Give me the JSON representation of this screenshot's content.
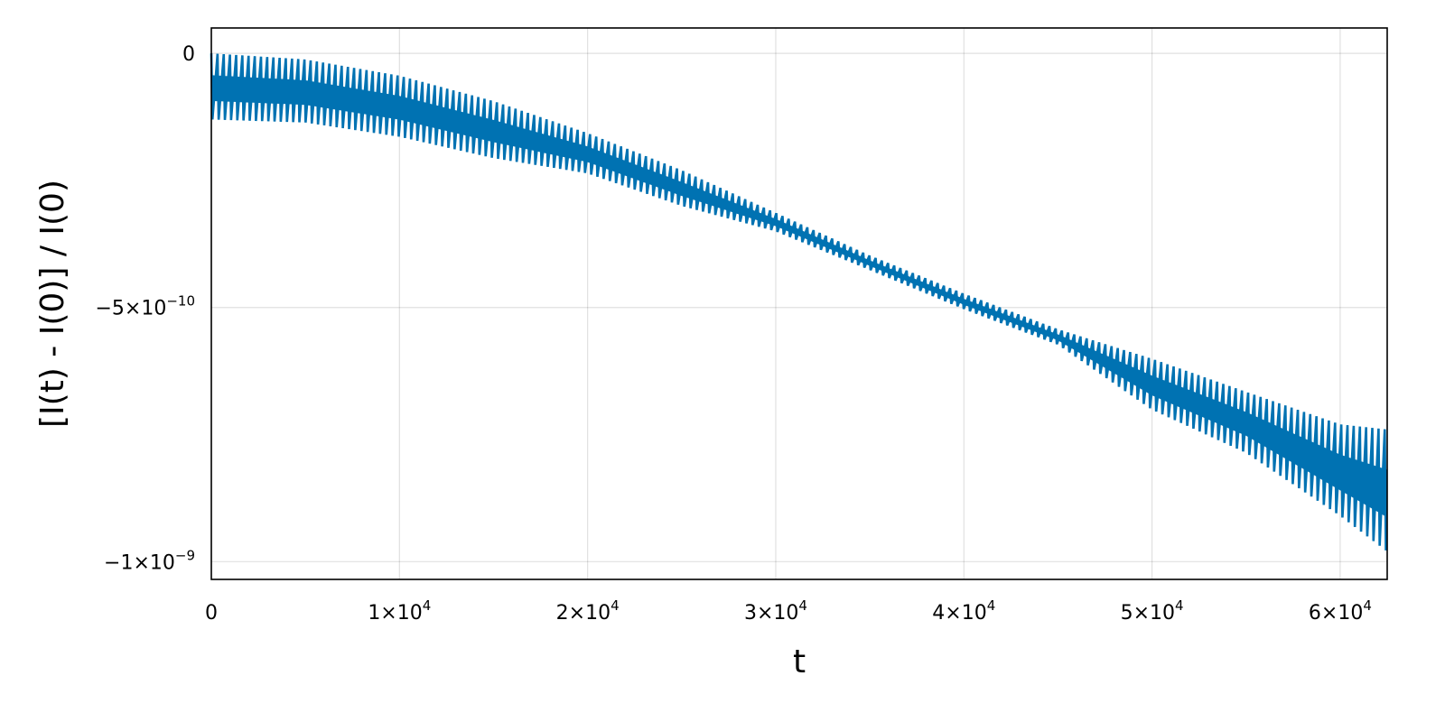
{
  "chart_data": {
    "type": "line",
    "title": "",
    "xlabel": "t",
    "ylabel": "[I(t) - I(0)] / I(0)",
    "xlim": [
      0,
      62500
    ],
    "ylim": [
      -1.035e-09,
      5e-11
    ],
    "grid": true,
    "legend": "none",
    "x_ticks": [
      {
        "value": 0,
        "mantissa": "0",
        "exponent": ""
      },
      {
        "value": 10000,
        "mantissa": "1×10",
        "exponent": "4"
      },
      {
        "value": 20000,
        "mantissa": "2×10",
        "exponent": "4"
      },
      {
        "value": 30000,
        "mantissa": "3×10",
        "exponent": "4"
      },
      {
        "value": 40000,
        "mantissa": "4×10",
        "exponent": "4"
      },
      {
        "value": 50000,
        "mantissa": "5×10",
        "exponent": "4"
      },
      {
        "value": 60000,
        "mantissa": "6×10",
        "exponent": "4"
      }
    ],
    "y_ticks": [
      {
        "value": 0,
        "mantissa": "0",
        "exponent": ""
      },
      {
        "value": -5e-10,
        "mantissa": "−5×10",
        "exponent": "−10"
      },
      {
        "value": -1e-09,
        "mantissa": "−1×10",
        "exponent": "−9"
      }
    ],
    "series": [
      {
        "color": "#0072b2",
        "oscillation_period": 330,
        "envelope_upper": {
          "x": [
            0,
            5000,
            10000,
            15000,
            20000,
            25000,
            30000,
            35000,
            40000,
            45000,
            50000,
            55000,
            60000,
            62500
          ],
          "y": [
            0,
            -1.2e-11,
            -4.4e-11,
            -9.4e-11,
            -1.57e-10,
            -2.3e-10,
            -3.14e-10,
            -3.98e-10,
            -4.73e-10,
            -5.43e-10,
            -6.01e-10,
            -6.66e-10,
            -7.3e-10,
            -7.4e-10
          ]
        },
        "envelope_lower": {
          "x": [
            0,
            5000,
            10000,
            15000,
            20000,
            25000,
            30000,
            35000,
            40000,
            45000,
            50000,
            55000,
            60000,
            62500
          ],
          "y": [
            -1.3e-10,
            -1.36e-10,
            -1.64e-10,
            -2.06e-10,
            -2.36e-10,
            -3e-10,
            -3.5e-10,
            -4.26e-10,
            -5.03e-10,
            -5.73e-10,
            -7.01e-10,
            -7.86e-10,
            -9.1e-10,
            -9.8e-10
          ]
        }
      }
    ]
  }
}
